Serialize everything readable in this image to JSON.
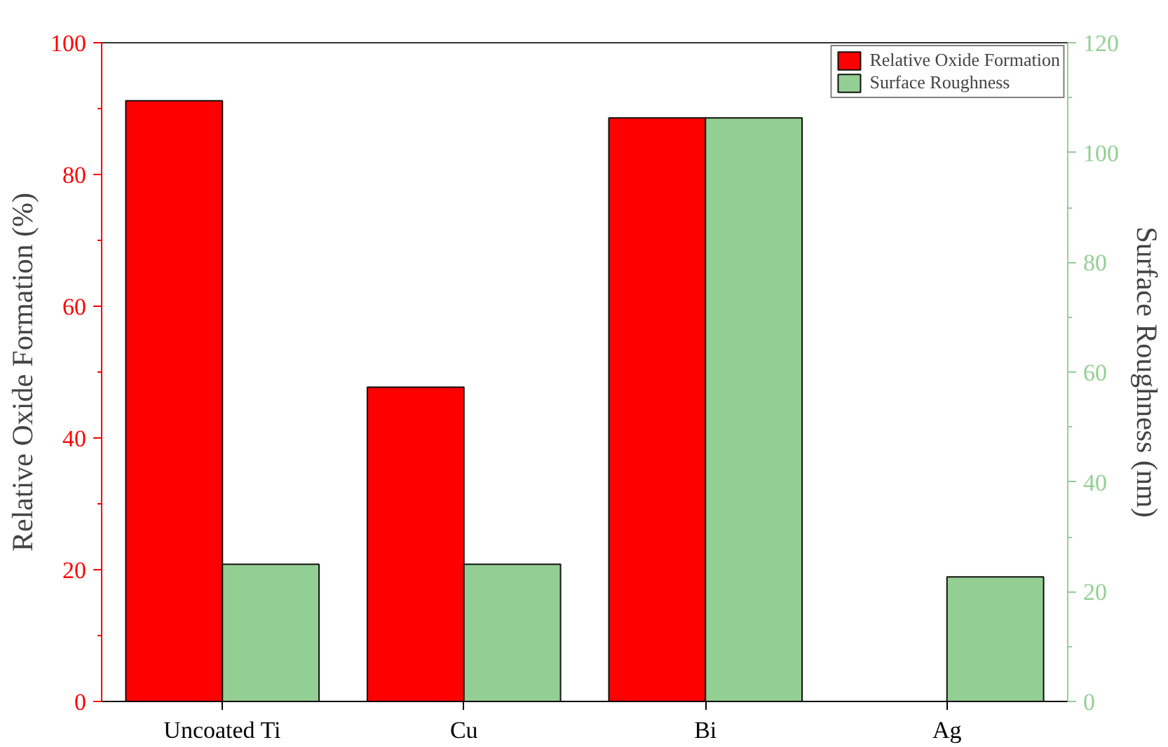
{
  "chart_data": {
    "type": "bar",
    "categories": [
      "Uncoated Ti",
      "Cu",
      "Bi",
      "Ag"
    ],
    "ylabel": "Relative Oxide Formation (%)",
    "y2label": "Surface Roughness (nm)",
    "series": [
      {
        "name": "Relative Oxide Formation",
        "color": "#ff0000",
        "values": [
          91.2,
          47.7,
          88.6,
          null
        ]
      },
      {
        "name": "Surface Roughness",
        "color": "#93cf93",
        "axis": "y2",
        "values": [
          25.0,
          25.0,
          106.3,
          22.7
        ]
      }
    ],
    "ylim": [
      0,
      100
    ],
    "yticks": [
      0,
      20,
      40,
      60,
      80,
      100
    ],
    "y2lim": [
      0,
      120
    ],
    "y2ticks": [
      0,
      20,
      40,
      60,
      80,
      100,
      120
    ],
    "legend": "top right",
    "grid": false
  }
}
